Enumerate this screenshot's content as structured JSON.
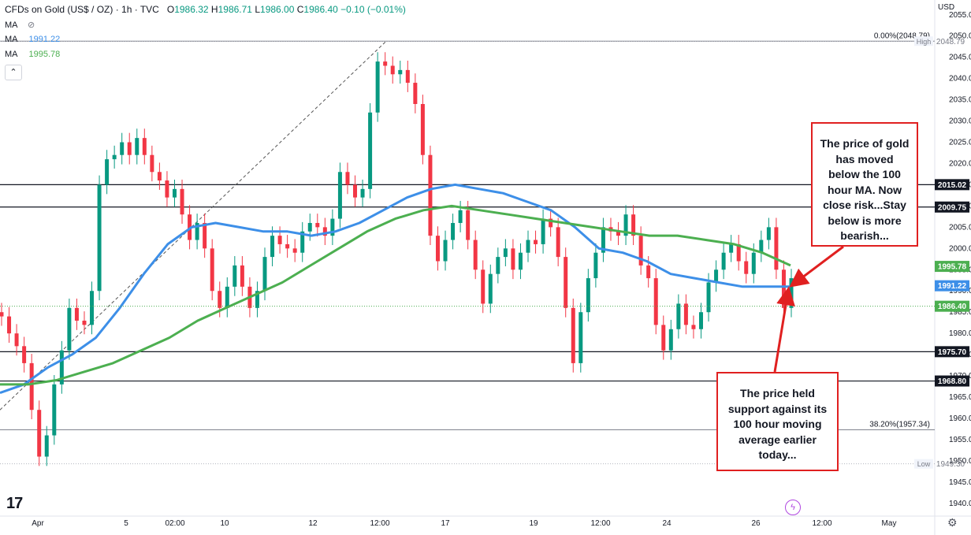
{
  "header": {
    "symbol": "CFDs on Gold (US$ / OZ) · 1h · TVC",
    "o_label": "O",
    "o": "1986.32",
    "h_label": "H",
    "h": "1986.71",
    "l_label": "L",
    "l": "1986.00",
    "c_label": "C",
    "c": "1986.40",
    "change": "−0.10 (−0.01%)",
    "ma1_label": "MA",
    "ma1_icon": "eye-off-icon",
    "ma2_label": "MA",
    "ma2_value": "1991.22",
    "ma3_label": "MA",
    "ma3_value": "1995.78",
    "collapse_icon": "chevron-up-icon",
    "currency": "USD"
  },
  "colors": {
    "up": "#089981",
    "down": "#f23645",
    "ma100": "#3d8fe8",
    "ma200": "#4caf50",
    "annotation": "#e02020",
    "price_tag": "#4caf50",
    "ma100_tag": "#3d8fe8",
    "level_tag": "#131722"
  },
  "annotations": [
    {
      "id": "upper",
      "text": "The price of gold has moved below the 100 hour MA. Now close risk...Stay below is more bearish..."
    },
    {
      "id": "lower",
      "text": "The price held support against its 100 hour moving average earlier today..."
    }
  ],
  "footer": {
    "logo": "17",
    "bolt_icon": "lightning-icon",
    "settings_icon": "gear-icon"
  },
  "chart_data": {
    "type": "candlestick",
    "ylim": [
      1937,
      2057
    ],
    "y_ticks": [
      1940,
      1945,
      1950,
      1955,
      1960,
      1965,
      1970,
      1975,
      1980,
      1985,
      1990,
      1995,
      2000,
      2005,
      2010,
      2015,
      2020,
      2025,
      2030,
      2035,
      2040,
      2045,
      2050,
      2055
    ],
    "x_ticks": [
      "Apr",
      "5",
      "02:00",
      "10",
      "12",
      "12:00",
      "17",
      "19",
      "12:00",
      "24",
      "26",
      "12:00",
      "May"
    ],
    "horizontal_levels": [
      2015.02,
      2009.75,
      1975.7,
      1968.8
    ],
    "level_labels": [
      "2015.02",
      "2009.75",
      "1975.70",
      "1968.80"
    ],
    "fib_levels": [
      {
        "label": "0.00%(2048.79)",
        "value": 2048.79
      },
      {
        "label": "38.20%(1957.34)",
        "value": 1957.34
      }
    ],
    "high": {
      "label": "High",
      "value": "2048.79"
    },
    "low": {
      "label": "Low",
      "value": "1949.30"
    },
    "current_price": 1986.4,
    "price_tags": [
      {
        "value": 1995.78,
        "label": "1995.78",
        "kind": "ma200"
      },
      {
        "value": 1991.22,
        "label": "1991.22",
        "kind": "ma100"
      },
      {
        "value": 1986.4,
        "label": "1986.40",
        "kind": "price"
      }
    ],
    "series": [
      {
        "name": "MA",
        "period_hint": "100 hour",
        "values": [
          1966,
          1968,
          1972,
          1975,
          1979,
          1986,
          1994,
          2001,
          2005,
          2006,
          2005,
          2004,
          2004,
          2003,
          2004,
          2006,
          2009,
          2012,
          2014,
          2015,
          2014,
          2013,
          2011,
          2009,
          2005,
          2000,
          1999,
          1997,
          1994,
          1993,
          1992,
          1991,
          1991,
          1991
        ]
      },
      {
        "name": "MA",
        "period_hint": "200 hour",
        "values": [
          1968,
          1968,
          1969,
          1971,
          1973,
          1976,
          1979,
          1983,
          1986,
          1989,
          1992,
          1996,
          2000,
          2004,
          2007,
          2009,
          2010,
          2009,
          2008,
          2007,
          2006,
          2005,
          2004,
          2003,
          2003,
          2002,
          2001,
          1999,
          1996
        ]
      }
    ],
    "closes": [
      1984,
      1980,
      1977,
      1973,
      1962,
      1951,
      1956,
      1968,
      1976,
      1986,
      1983,
      1982,
      1990,
      2015,
      2021,
      2022,
      2025,
      2022,
      2026,
      2022,
      2018,
      2016,
      2012,
      2014,
      2008,
      2002,
      2006,
      2000,
      1990,
      1986,
      1991,
      1996,
      1991,
      1986,
      1990,
      1998,
      2003,
      2001,
      2000,
      1999,
      2004,
      2006,
      2005,
      2003,
      2007,
      2018,
      2015,
      2012,
      2014,
      2032,
      2044,
      2043,
      2041,
      2042,
      2039,
      2034,
      2022,
      2003,
      1997,
      2002,
      2006,
      2009,
      2002,
      1995,
      1987,
      1994,
      1998,
      2000,
      1995,
      1999,
      2002,
      2001,
      2007,
      2005,
      1998,
      1986,
      1973,
      1985,
      1993,
      1999,
      2005,
      2004,
      2003,
      2008,
      2003,
      1996,
      1993,
      1982,
      1976,
      1981,
      1987,
      1982,
      1981,
      1985,
      1992,
      1995,
      1999,
      2001,
      1997,
      1994,
      1999,
      2002,
      2005,
      1995,
      1986,
      1993
    ]
  }
}
